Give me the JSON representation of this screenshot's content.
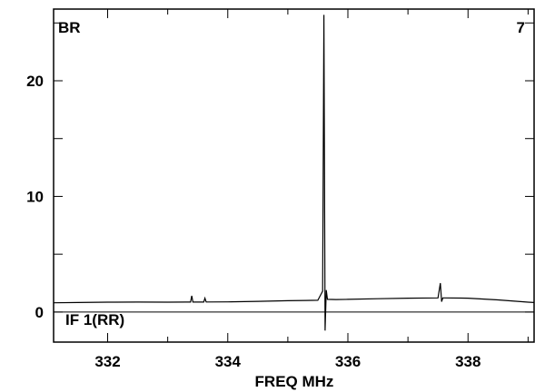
{
  "chart_data": {
    "type": "line",
    "title": "",
    "xlabel": "FREQ MHz",
    "ylabel": "",
    "xlim": [
      331.1,
      339.1
    ],
    "ylim": [
      -2.6,
      26.2
    ],
    "x_ticks": [
      332,
      334,
      336,
      338
    ],
    "x_tick_labels": [
      "332",
      "334",
      "336",
      "338"
    ],
    "y_ticks": [
      0,
      10,
      20
    ],
    "y_tick_labels": [
      "0",
      "10",
      "20"
    ],
    "grid": false,
    "zero_line": true,
    "annotations": {
      "top_left": "BR",
      "top_right": "7",
      "bottom_left": "IF 1(RR)"
    },
    "series": [
      {
        "color": "#000000",
        "x": [
          331.1,
          331.5,
          332.0,
          332.5,
          333.0,
          333.3,
          333.38,
          333.4,
          333.42,
          333.6,
          333.62,
          333.64,
          334.0,
          334.5,
          335.0,
          335.3,
          335.5,
          335.58,
          335.6,
          335.62,
          335.64,
          335.66,
          335.8,
          336.0,
          336.5,
          337.0,
          337.5,
          337.54,
          337.56,
          337.58,
          337.6,
          338.0,
          338.5,
          339.0,
          339.1
        ],
        "y": [
          0.8,
          0.82,
          0.85,
          0.86,
          0.85,
          0.86,
          0.86,
          1.4,
          0.86,
          0.86,
          1.2,
          0.87,
          0.88,
          0.92,
          0.98,
          1.0,
          1.02,
          1.8,
          25.7,
          -1.6,
          1.9,
          1.1,
          1.08,
          1.1,
          1.15,
          1.2,
          1.22,
          2.5,
          0.9,
          1.22,
          1.22,
          1.2,
          1.05,
          0.85,
          0.82
        ]
      }
    ]
  }
}
